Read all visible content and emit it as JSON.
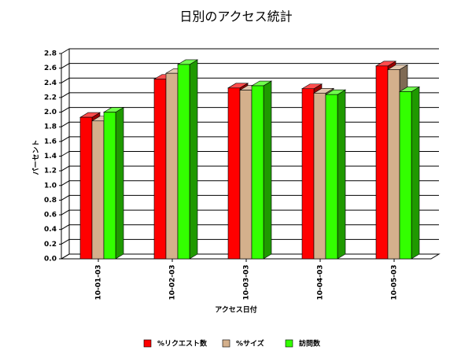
{
  "chart_data": {
    "type": "bar3d",
    "title": "日別のアクセス統計",
    "x_label": "アクセス日付",
    "y_label": "パーセント",
    "categories": [
      "10-01-03",
      "10-02-03",
      "10-03-03",
      "10-04-03",
      "10-05-03"
    ],
    "series": [
      {
        "name": "%リクエスト数",
        "color": "#ff0000",
        "values": [
          1.93,
          2.45,
          2.33,
          2.32,
          2.63
        ]
      },
      {
        "name": "%サイズ",
        "color": "#d4b08c",
        "values": [
          1.88,
          2.53,
          2.3,
          2.26,
          2.58
        ]
      },
      {
        "name": "訪問数",
        "color": "#33ff00",
        "values": [
          2.0,
          2.65,
          2.36,
          2.24,
          2.28
        ]
      }
    ],
    "ylim": [
      0,
      2.8
    ],
    "yticks": [
      {
        "value": 0,
        "label": "0.0"
      },
      0.2,
      0.4,
      0.6,
      0.8,
      {
        "value": 1,
        "label": "1.0"
      },
      1.2,
      1.4,
      1.6,
      1.8,
      {
        "value": 2,
        "label": "2.0"
      },
      2.2,
      2.4,
      2.6,
      2.8
    ],
    "grid": true,
    "legend": "bottom"
  }
}
